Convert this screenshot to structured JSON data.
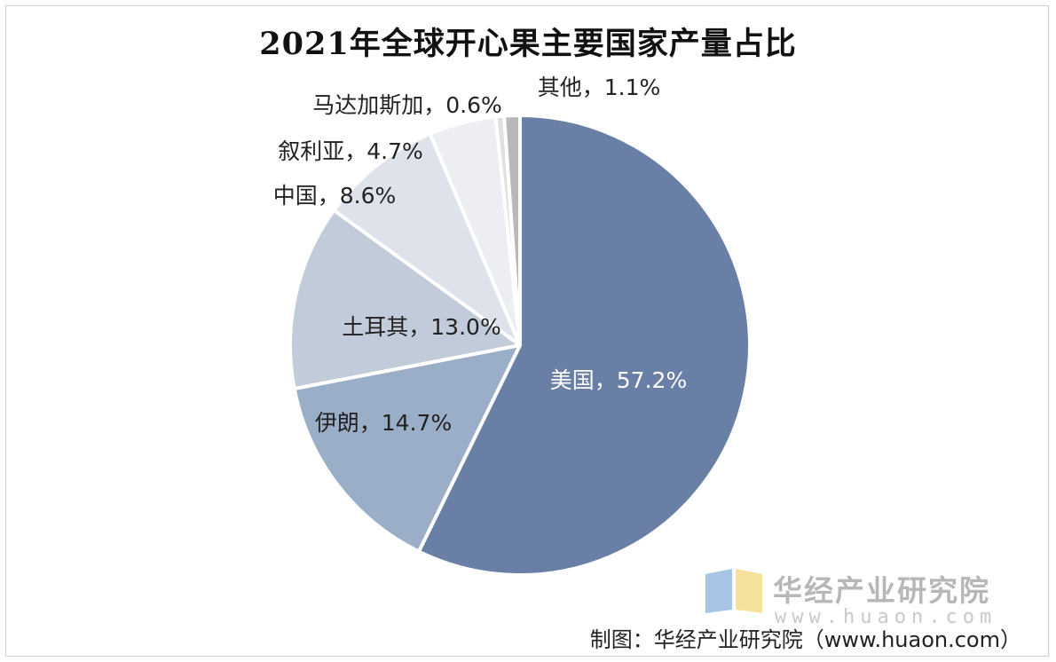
{
  "chart_data": {
    "type": "pie",
    "title": "2021年全球开心果主要国家产量占比",
    "unit": "%",
    "slices": [
      {
        "label": "美国",
        "value": 57.2,
        "display": "美国，57.2%",
        "color": "#6a7fa5"
      },
      {
        "label": "伊朗",
        "value": 14.7,
        "display": "伊朗，14.7%",
        "color": "#9baec7"
      },
      {
        "label": "土耳其",
        "value": 13.0,
        "display": "土耳其，13.0%",
        "color": "#c2cbda"
      },
      {
        "label": "中国",
        "value": 8.6,
        "display": "中国，8.6%",
        "color": "#dde2eb"
      },
      {
        "label": "叙利亚",
        "value": 4.7,
        "display": "叙利亚，4.7%",
        "color": "#eceef3"
      },
      {
        "label": "马达加斯加",
        "value": 0.6,
        "display": "马达加斯加，0.6%",
        "color": "#e0e0e0"
      },
      {
        "label": "其他",
        "value": 1.1,
        "display": "其他，1.1%",
        "color": "#b8b8b8"
      }
    ],
    "legend": "none"
  },
  "watermark": {
    "name": "华经产业研究院",
    "url": "www.huaon.com",
    "colors": [
      "#8ab0dd",
      "#f2dd8c"
    ]
  },
  "source": "制图：华经产业研究院（www.huaon.com）"
}
